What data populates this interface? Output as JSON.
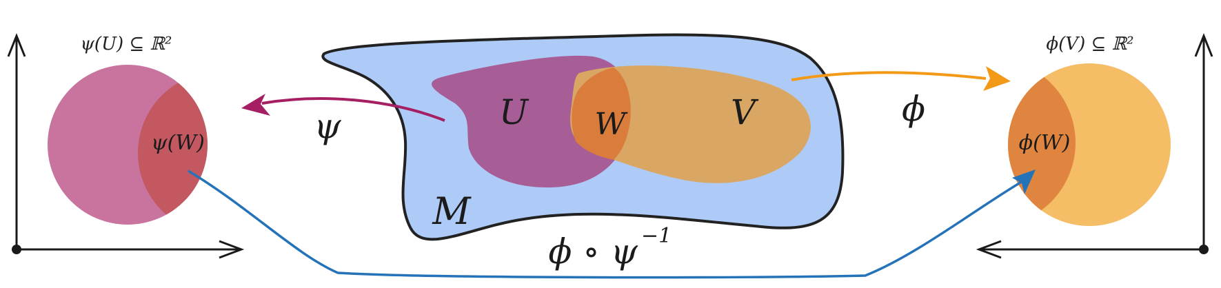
{
  "left_chart": {
    "title": "ψ(U) ⊆ ℝ²",
    "region_label": "ψ(W)"
  },
  "right_chart": {
    "title": "ϕ(V) ⊆ ℝ²",
    "region_label": "ϕ(W)"
  },
  "manifold": {
    "label": "M",
    "set_u": "U",
    "set_v": "V",
    "set_w": "W"
  },
  "maps": {
    "psi": "ψ",
    "phi": "ϕ",
    "transition": "ϕ ∘ ψ",
    "transition_exp": "−1"
  },
  "colors": {
    "manifold_fill": "#aecbf7",
    "manifold_stroke": "#222222",
    "set_u": "#a75e97",
    "set_v": "#d9a763",
    "set_w": "#d97c3c",
    "chart_left": "#c8749f",
    "chart_left_overlap": "#c35861",
    "chart_right": "#f5bd66",
    "chart_right_overlap": "#e08540",
    "arrow_psi": "#a61f63",
    "arrow_phi": "#f29a18",
    "arrow_transition": "#2473b8",
    "axes": "#1a1a1a"
  }
}
